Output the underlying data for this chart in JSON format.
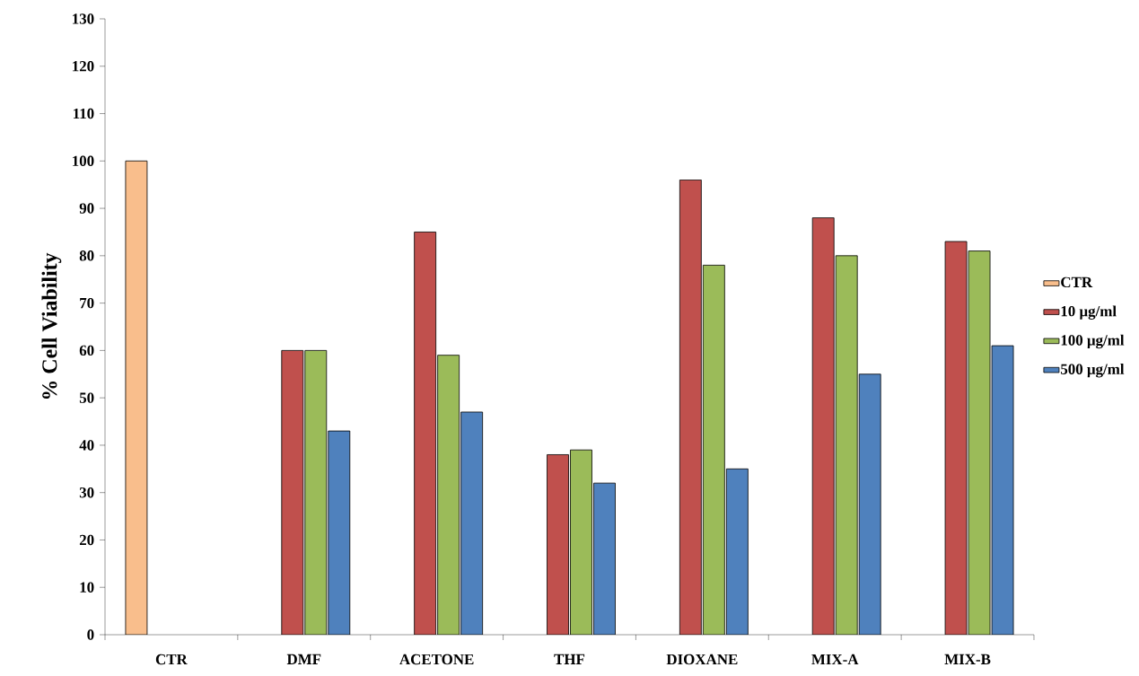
{
  "chart_data": {
    "type": "bar",
    "ylabel": "% Cell Viability",
    "categories": [
      "CTR",
      "DMF",
      "ACETONE",
      "THF",
      "DIOXANE",
      "MIX-A",
      "MIX-B"
    ],
    "series": [
      {
        "name": "CTR",
        "color": "#f9be8c",
        "values": [
          100,
          null,
          null,
          null,
          null,
          null,
          null
        ]
      },
      {
        "name": "10 μg/ml",
        "color": "#c0504d",
        "values": [
          null,
          60,
          85,
          38,
          96,
          88,
          83
        ]
      },
      {
        "name": "100 μg/ml",
        "color": "#9bbb59",
        "values": [
          null,
          60,
          59,
          39,
          78,
          80,
          81
        ]
      },
      {
        "name": "500 μg/ml",
        "color": "#4f81bd",
        "values": [
          null,
          43,
          47,
          32,
          35,
          55,
          61
        ]
      }
    ],
    "ylim": [
      0,
      130
    ],
    "yticks": [
      0,
      10,
      20,
      30,
      40,
      50,
      60,
      70,
      80,
      90,
      100,
      110,
      120,
      130
    ],
    "grid": false,
    "legend": "right"
  }
}
